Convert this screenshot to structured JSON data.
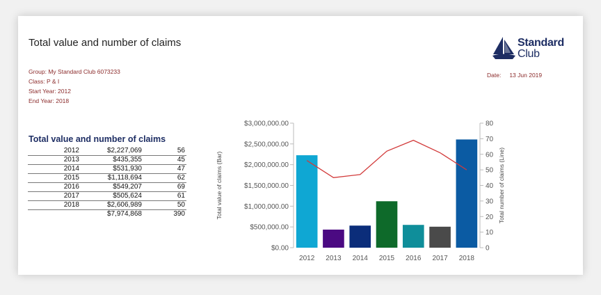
{
  "report": {
    "title": "Total value and number of claims",
    "group": "Group:  My Standard Club 6073233",
    "class": "Class: P & I",
    "start_year": "Start Year: 2012",
    "end_year": "End Year: 2018",
    "date_label": "Date:",
    "date_value": "13 Jun 2019"
  },
  "logo": {
    "line1": "Standard",
    "line2": "Club",
    "color": "#1d2d63"
  },
  "table": {
    "title": "Total value and number of claims",
    "rows": [
      {
        "year": "2012",
        "value": "$2,227,069",
        "count": "56"
      },
      {
        "year": "2013",
        "value": "$435,355",
        "count": "45"
      },
      {
        "year": "2014",
        "value": "$531,930",
        "count": "47"
      },
      {
        "year": "2015",
        "value": "$1,118,694",
        "count": "62"
      },
      {
        "year": "2016",
        "value": "$549,207",
        "count": "69"
      },
      {
        "year": "2017",
        "value": "$505,624",
        "count": "61"
      },
      {
        "year": "2018",
        "value": "$2,606,989",
        "count": "50"
      }
    ],
    "total_value": "$7,974,868",
    "total_count": "390"
  },
  "chart_data": {
    "type": "bar",
    "categories": [
      "2012",
      "2013",
      "2014",
      "2015",
      "2016",
      "2017",
      "2018"
    ],
    "series": [
      {
        "values": [
          2227069,
          435355,
          531930,
          1118694,
          549207,
          505624,
          2606989
        ],
        "axis": "left",
        "render": "bar",
        "colors": [
          "#0fa7d3",
          "#4b0a82",
          "#0b2d7a",
          "#0e6a2a",
          "#0f8e9a",
          "#4a4a4a",
          "#0b5ba3"
        ]
      },
      {
        "values": [
          56,
          45,
          47,
          62,
          69,
          61,
          50
        ],
        "axis": "right",
        "render": "line",
        "color": "#d23a3a"
      }
    ],
    "ylabel": "Total value of claims (Bar)",
    "y2label": "Total number of claims (Line)",
    "ylim": [
      0,
      3000000
    ],
    "y2lim": [
      0,
      80
    ],
    "yticks": [
      "$0.00",
      "$500,000.00",
      "$1,000,000.00",
      "$1,500,000.00",
      "$2,000,000.00",
      "$2,500,000.00",
      "$3,000,000.00"
    ],
    "y2ticks": [
      "0",
      "10",
      "20",
      "30",
      "40",
      "50",
      "60",
      "70",
      "80"
    ],
    "grid": false,
    "legend": "none"
  }
}
